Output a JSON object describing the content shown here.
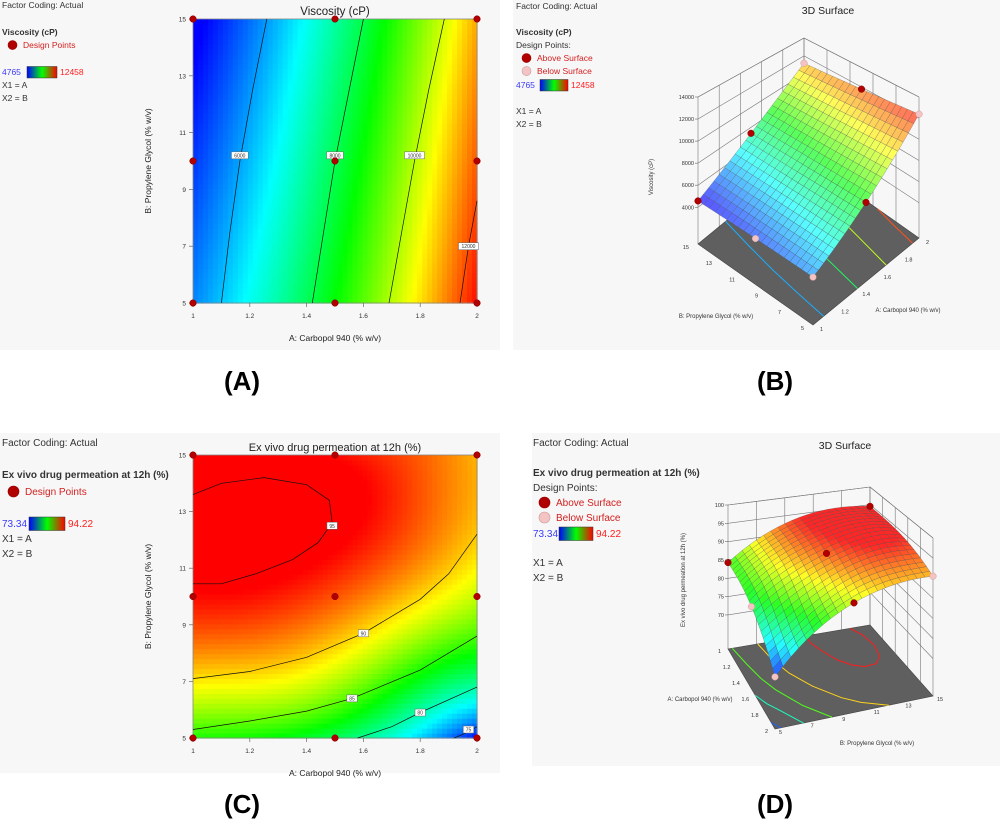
{
  "chart_data": [
    {
      "type": "heatmap",
      "subtype": "contour",
      "panel_label": "(A)",
      "title": "Viscosity (cP)",
      "xlabel": "A: Carbopol 940 (% w/v)",
      "ylabel": "B: Propylene Glycol (% w/v)",
      "xlim": [
        1,
        2
      ],
      "ylim": [
        5,
        15
      ],
      "xticks": [
        1,
        1.2,
        1.4,
        1.6,
        1.8,
        2
      ],
      "yticks": [
        5,
        7,
        9,
        11,
        13,
        15
      ],
      "x_values": [
        1,
        1.25,
        1.5,
        1.75,
        2
      ],
      "y_values": [
        5,
        7.5,
        10,
        12.5,
        15
      ],
      "z": [
        [
          5772,
          7067,
          8600,
          10371,
          12381
        ],
        [
          5472,
          6767,
          8300,
          10071,
          12081
        ],
        [
          5172,
          6467,
          8000,
          9771,
          11781
        ],
        [
          4872,
          6167,
          7700,
          9471,
          11481
        ],
        [
          4572,
          5867,
          7400,
          9171,
          11181
        ]
      ],
      "color_range": [
        4765,
        12458
      ],
      "colorscale": [
        "#0000ff",
        "#00ffff",
        "#00ff00",
        "#ffff00",
        "#ff0000"
      ],
      "contours": [
        {
          "level": 6000,
          "label_at": [
            1.165,
            10.2
          ],
          "points": [
            [
              1.1,
              5
            ],
            [
              1.13,
              7.5
            ],
            [
              1.165,
              10
            ],
            [
              1.21,
              12.5
            ],
            [
              1.26,
              15
            ]
          ]
        },
        {
          "level": 8000,
          "label_at": [
            1.5,
            10.2
          ],
          "points": [
            [
              1.42,
              5
            ],
            [
              1.46,
              7.5
            ],
            [
              1.5,
              10
            ],
            [
              1.55,
              12.5
            ],
            [
              1.6,
              15
            ]
          ]
        },
        {
          "level": 10000,
          "label_at": [
            1.78,
            10.2
          ],
          "points": [
            [
              1.69,
              5
            ],
            [
              1.735,
              7.5
            ],
            [
              1.78,
              10
            ],
            [
              1.83,
              12.5
            ],
            [
              1.885,
              15
            ]
          ]
        },
        {
          "level": 12000,
          "label_at": [
            1.97,
            7
          ],
          "points": [
            [
              1.94,
              5
            ],
            [
              1.97,
              7
            ],
            [
              2,
              8.6
            ]
          ]
        }
      ],
      "design_points": [
        [
          1,
          5
        ],
        [
          1.5,
          5
        ],
        [
          2,
          5
        ],
        [
          1,
          10
        ],
        [
          1.5,
          10
        ],
        [
          2,
          10
        ],
        [
          1,
          15
        ],
        [
          1.5,
          15
        ],
        [
          2,
          15
        ]
      ],
      "legend": {
        "factor_coding": "Factor Coding: Actual",
        "response": "Viscosity (cP)",
        "points": [
          "Design Points"
        ],
        "min_label": "4765",
        "max_label": "12458",
        "x1": "X1 = A",
        "x2": "X2 = B"
      }
    },
    {
      "type": "surface",
      "panel_label": "(B)",
      "title": "3D Surface",
      "xlabel": "A: Carbopol 940 (% w/v)",
      "ylabel": "B: Propylene Glycol (% w/v)",
      "zlabel": "Viscosity (cP)",
      "xticks": [
        1,
        1.2,
        1.4,
        1.6,
        1.8,
        2
      ],
      "yticks": [
        5,
        7,
        9,
        11,
        13,
        15
      ],
      "zticks": [
        4000,
        6000,
        8000,
        10000,
        12000,
        14000
      ],
      "x_values": [
        1,
        1.25,
        1.5,
        1.75,
        2
      ],
      "y_values": [
        5,
        7.5,
        10,
        12.5,
        15
      ],
      "z": [
        [
          5772,
          7067,
          8600,
          10371,
          12381
        ],
        [
          5472,
          6767,
          8300,
          10071,
          12081
        ],
        [
          5172,
          6467,
          8000,
          9771,
          11781
        ],
        [
          4872,
          6167,
          7700,
          9471,
          11481
        ],
        [
          4572,
          5867,
          7400,
          9171,
          11181
        ]
      ],
      "color_range": [
        4765,
        12458
      ],
      "floor_contours": [
        {
          "level": 6000,
          "points": [
            [
              1.1,
              5
            ],
            [
              1.13,
              7.5
            ],
            [
              1.165,
              10
            ],
            [
              1.21,
              12.5
            ],
            [
              1.26,
              15
            ]
          ]
        },
        {
          "level": 8000,
          "points": [
            [
              1.42,
              5
            ],
            [
              1.46,
              7.5
            ],
            [
              1.5,
              10
            ],
            [
              1.55,
              12.5
            ],
            [
              1.6,
              15
            ]
          ]
        },
        {
          "level": 10000,
          "points": [
            [
              1.69,
              5
            ],
            [
              1.735,
              7.5
            ],
            [
              1.78,
              10
            ],
            [
              1.83,
              12.5
            ],
            [
              1.885,
              15
            ]
          ]
        },
        {
          "level": 12000,
          "points": [
            [
              1.94,
              5
            ],
            [
              1.97,
              7
            ],
            [
              2,
              8.6
            ]
          ]
        }
      ],
      "design_points": [
        {
          "A": 1,
          "B": 15,
          "position": "above"
        },
        {
          "A": 1.5,
          "B": 15,
          "position": "above"
        },
        {
          "A": 2,
          "B": 10,
          "position": "above"
        },
        {
          "A": 1.5,
          "B": 5,
          "position": "above"
        },
        {
          "A": 2,
          "B": 15,
          "position": "below"
        },
        {
          "A": 2,
          "B": 5,
          "position": "below"
        },
        {
          "A": 1,
          "B": 5,
          "position": "below"
        },
        {
          "A": 1,
          "B": 10,
          "position": "below"
        }
      ],
      "legend": {
        "factor_coding": "Factor Coding: Actual",
        "response": "Viscosity (cP)",
        "design_points": "Design Points:",
        "points": [
          "Above Surface",
          "Below Surface"
        ],
        "min_label": "4765",
        "max_label": "12458",
        "x1": "X1 = A",
        "x2": "X2 = B"
      }
    },
    {
      "type": "heatmap",
      "subtype": "contour",
      "panel_label": "(C)",
      "title": "Ex vivo drug permeation at 12h (%)",
      "xlabel": "A: Carbopol 940 (% w/v)",
      "ylabel": "B: Propylene Glycol (% w/v)",
      "xlim": [
        1,
        2
      ],
      "ylim": [
        5,
        15
      ],
      "xticks": [
        1,
        1.2,
        1.4,
        1.6,
        1.8,
        2
      ],
      "yticks": [
        5,
        7,
        9,
        11,
        13,
        15
      ],
      "x_values": [
        1,
        1.25,
        1.5,
        1.75,
        2
      ],
      "y_values": [
        5,
        7.5,
        10,
        12.5,
        15
      ],
      "z": [
        [
          84.3,
          83.8,
          82.0,
          78.5,
          73.5
        ],
        [
          90.4,
          90.1,
          88.5,
          85.2,
          82.5
        ],
        [
          94.0,
          93.8,
          92.5,
          90.3,
          87.8
        ],
        [
          95.3,
          95.6,
          94.8,
          92.8,
          90.3
        ],
        [
          94.5,
          94.5,
          94.0,
          92.7,
          90.5
        ]
      ],
      "color_range": [
        73.34,
        94.22
      ],
      "colorscale": [
        "#0000ff",
        "#00ffff",
        "#00ff00",
        "#ffff00",
        "#ff0000"
      ],
      "contours": [
        {
          "level": 95,
          "label_at": [
            1.49,
            12.5
          ],
          "points": [
            [
              1,
              13.6
            ],
            [
              1.1,
              14.0
            ],
            [
              1.25,
              14.2
            ],
            [
              1.4,
              13.95
            ],
            [
              1.48,
              13.4
            ],
            [
              1.49,
              12.6
            ],
            [
              1.44,
              11.9
            ],
            [
              1.35,
              11.3
            ],
            [
              1.22,
              10.8
            ],
            [
              1.1,
              10.45
            ],
            [
              1,
              10.45
            ]
          ]
        },
        {
          "level": 90,
          "label_at": [
            1.6,
            8.7
          ],
          "points": [
            [
              1,
              7.1
            ],
            [
              1.2,
              7.35
            ],
            [
              1.4,
              7.85
            ],
            [
              1.6,
              8.7
            ],
            [
              1.8,
              9.9
            ],
            [
              1.9,
              10.8
            ],
            [
              2,
              12.2
            ]
          ]
        },
        {
          "level": 85,
          "label_at": [
            1.56,
            6.4
          ],
          "points": [
            [
              1,
              5.3
            ],
            [
              1.2,
              5.6
            ],
            [
              1.4,
              5.95
            ],
            [
              1.56,
              6.4
            ],
            [
              1.8,
              7.4
            ],
            [
              2,
              8.6
            ]
          ]
        },
        {
          "level": 80,
          "label_at": [
            1.8,
            5.9
          ],
          "points": [
            [
              1.58,
              5
            ],
            [
              1.7,
              5.4
            ],
            [
              1.8,
              5.9
            ],
            [
              2,
              6.8
            ]
          ]
        },
        {
          "level": 75,
          "label_at": [
            1.97,
            5.3
          ],
          "points": [
            [
              1.92,
              5
            ],
            [
              1.97,
              5.22
            ],
            [
              2,
              5.4
            ]
          ]
        }
      ],
      "design_points": [
        [
          1,
          5
        ],
        [
          1.5,
          5
        ],
        [
          2,
          5
        ],
        [
          1,
          10
        ],
        [
          1.5,
          10
        ],
        [
          2,
          10
        ],
        [
          1,
          15
        ],
        [
          1.5,
          15
        ],
        [
          2,
          15
        ]
      ],
      "legend": {
        "factor_coding": "Factor Coding: Actual",
        "response": "Ex vivo drug permeation at 12h (%)",
        "points": [
          "Design Points"
        ],
        "min_label": "73.34",
        "max_label": "94.22",
        "x1": "X1 = A",
        "x2": "X2 = B"
      }
    },
    {
      "type": "surface",
      "panel_label": "(D)",
      "title": "3D Surface",
      "xlabel": "A: Carbopol 940 (% w/v)",
      "ylabel": "B: Propylene Glycol (% w/v)",
      "zlabel": "Ex vivo drug permeation at 12h (%)",
      "xticks": [
        1,
        1.2,
        1.4,
        1.6,
        1.8,
        2
      ],
      "yticks": [
        5,
        7,
        9,
        11,
        13,
        15
      ],
      "zticks": [
        70,
        75,
        80,
        85,
        90,
        95,
        100
      ],
      "x_values": [
        1,
        1.25,
        1.5,
        1.75,
        2
      ],
      "y_values": [
        5,
        7.5,
        10,
        12.5,
        15
      ],
      "z": [
        [
          84.3,
          83.8,
          82.0,
          78.5,
          73.5
        ],
        [
          90.4,
          90.1,
          88.5,
          85.2,
          82.5
        ],
        [
          94.0,
          93.8,
          92.5,
          90.3,
          87.8
        ],
        [
          95.3,
          95.6,
          94.8,
          92.8,
          90.3
        ],
        [
          94.5,
          94.5,
          94.0,
          92.7,
          90.5
        ]
      ],
      "color_range": [
        73.34,
        94.22
      ],
      "floor_contours": [
        {
          "level": 95,
          "points": [
            [
              1,
              13.6
            ],
            [
              1.1,
              14.0
            ],
            [
              1.25,
              14.2
            ],
            [
              1.4,
              13.95
            ],
            [
              1.48,
              13.4
            ],
            [
              1.49,
              12.6
            ],
            [
              1.44,
              11.9
            ],
            [
              1.35,
              11.3
            ],
            [
              1.22,
              10.8
            ],
            [
              1.1,
              10.45
            ],
            [
              1,
              10.45
            ]
          ]
        },
        {
          "level": 90,
          "points": [
            [
              1,
              7.1
            ],
            [
              1.2,
              7.35
            ],
            [
              1.4,
              7.85
            ],
            [
              1.6,
              8.7
            ],
            [
              1.8,
              9.9
            ],
            [
              1.9,
              10.8
            ],
            [
              2,
              12.2
            ]
          ]
        },
        {
          "level": 85,
          "points": [
            [
              1,
              5.3
            ],
            [
              1.2,
              5.6
            ],
            [
              1.4,
              5.95
            ],
            [
              1.56,
              6.4
            ],
            [
              1.8,
              7.4
            ],
            [
              2,
              8.6
            ]
          ]
        },
        {
          "level": 80,
          "points": [
            [
              1.58,
              5
            ],
            [
              1.7,
              5.4
            ],
            [
              1.8,
              5.9
            ],
            [
              2,
              6.8
            ]
          ]
        },
        {
          "level": 75,
          "points": [
            [
              1.92,
              5
            ],
            [
              1.97,
              5.22
            ],
            [
              2,
              5.4
            ]
          ]
        }
      ],
      "design_points": [
        {
          "A": 1,
          "B": 5,
          "position": "above"
        },
        {
          "A": 1,
          "B": 15,
          "position": "above"
        },
        {
          "A": 1.5,
          "B": 10,
          "position": "above"
        },
        {
          "A": 2,
          "B": 10,
          "position": "above"
        },
        {
          "A": 1.5,
          "B": 5,
          "position": "below"
        },
        {
          "A": 2,
          "B": 15,
          "position": "below"
        },
        {
          "A": 2,
          "B": 5,
          "position": "below"
        }
      ],
      "legend": {
        "factor_coding": "Factor Coding: Actual",
        "response": "Ex vivo drug permeation at 12h (%)",
        "design_points": "Design Points:",
        "points": [
          "Above Surface",
          "Below Surface"
        ],
        "min_label": "73.34",
        "max_label": "94.22",
        "x1": "X1 = A",
        "x2": "X2 = B"
      }
    }
  ]
}
